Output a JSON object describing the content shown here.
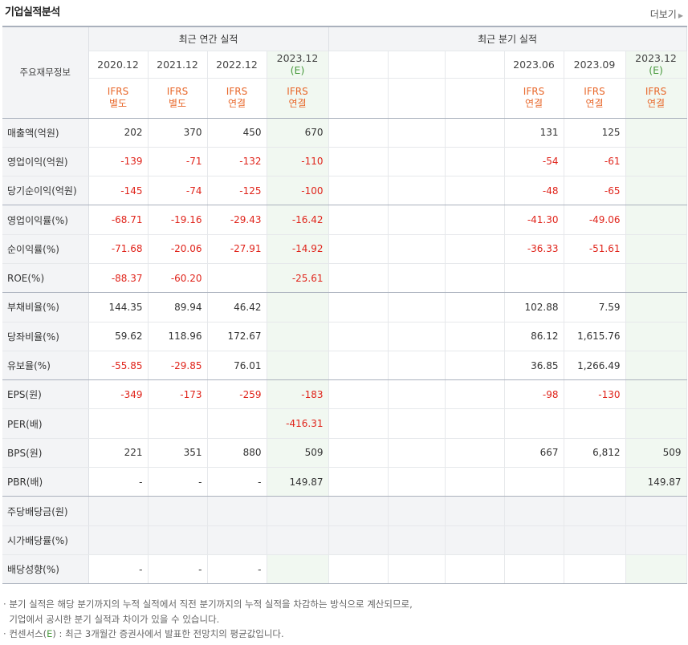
{
  "header": {
    "title": "기업실적분석",
    "more_label": "더보기"
  },
  "table": {
    "row_header_label": "주요재무정보",
    "annual_group_label": "최근 연간 실적",
    "quarter_group_label": "최근 분기 실적",
    "annual_periods": [
      {
        "label": "2020.12",
        "estimate": false,
        "ifrs": "IFRS",
        "basis": "별도"
      },
      {
        "label": "2021.12",
        "estimate": false,
        "ifrs": "IFRS",
        "basis": "별도"
      },
      {
        "label": "2022.12",
        "estimate": false,
        "ifrs": "IFRS",
        "basis": "연결"
      },
      {
        "label": "2023.12",
        "estimate": true,
        "estimate_mark": "(E)",
        "ifrs": "IFRS",
        "basis": "연결"
      }
    ],
    "quarter_periods": [
      {
        "label": "",
        "estimate": false,
        "ifrs": "",
        "basis": ""
      },
      {
        "label": "",
        "estimate": false,
        "ifrs": "",
        "basis": ""
      },
      {
        "label": "",
        "estimate": false,
        "ifrs": "",
        "basis": ""
      },
      {
        "label": "2023.06",
        "estimate": false,
        "ifrs": "IFRS",
        "basis": "연결"
      },
      {
        "label": "2023.09",
        "estimate": false,
        "ifrs": "IFRS",
        "basis": "연결"
      },
      {
        "label": "2023.12",
        "estimate": true,
        "estimate_mark": "(E)",
        "ifrs": "IFRS",
        "basis": "연결"
      }
    ],
    "rows": [
      {
        "label": "매출액(억원)",
        "values": [
          "202",
          "370",
          "450",
          "670",
          "",
          "",
          "",
          "131",
          "125",
          ""
        ]
      },
      {
        "label": "영업이익(억원)",
        "values": [
          "-139",
          "-71",
          "-132",
          "-110",
          "",
          "",
          "",
          "-54",
          "-61",
          ""
        ]
      },
      {
        "label": "당기순이익(억원)",
        "values": [
          "-145",
          "-74",
          "-125",
          "-100",
          "",
          "",
          "",
          "-48",
          "-65",
          ""
        ],
        "group_end": true
      },
      {
        "label": "영업이익률(%)",
        "values": [
          "-68.71",
          "-19.16",
          "-29.43",
          "-16.42",
          "",
          "",
          "",
          "-41.30",
          "-49.06",
          ""
        ]
      },
      {
        "label": "순이익률(%)",
        "values": [
          "-71.68",
          "-20.06",
          "-27.91",
          "-14.92",
          "",
          "",
          "",
          "-36.33",
          "-51.61",
          ""
        ]
      },
      {
        "label": "ROE(%)",
        "values": [
          "-88.37",
          "-60.20",
          "",
          "-25.61",
          "",
          "",
          "",
          "",
          "",
          ""
        ],
        "group_end": true
      },
      {
        "label": "부채비율(%)",
        "values": [
          "144.35",
          "89.94",
          "46.42",
          "",
          "",
          "",
          "",
          "102.88",
          "7.59",
          ""
        ]
      },
      {
        "label": "당좌비율(%)",
        "values": [
          "59.62",
          "118.96",
          "172.67",
          "",
          "",
          "",
          "",
          "86.12",
          "1,615.76",
          ""
        ]
      },
      {
        "label": "유보율(%)",
        "values": [
          "-55.85",
          "-29.85",
          "76.01",
          "",
          "",
          "",
          "",
          "36.85",
          "1,266.49",
          ""
        ],
        "group_end": true
      },
      {
        "label": "EPS(원)",
        "values": [
          "-349",
          "-173",
          "-259",
          "-183",
          "",
          "",
          "",
          "-98",
          "-130",
          ""
        ]
      },
      {
        "label": "PER(배)",
        "values": [
          "",
          "",
          "",
          "-416.31",
          "",
          "",
          "",
          "",
          "",
          ""
        ]
      },
      {
        "label": "BPS(원)",
        "values": [
          "221",
          "351",
          "880",
          "509",
          "",
          "",
          "",
          "667",
          "6,812",
          "509"
        ]
      },
      {
        "label": "PBR(배)",
        "values": [
          "-",
          "-",
          "-",
          "149.87",
          "",
          "",
          "",
          "",
          "",
          "149.87"
        ],
        "group_end": true
      },
      {
        "label": "주당배당금(원)",
        "values": [
          "",
          "",
          "",
          "",
          "",
          "",
          "",
          "",
          "",
          ""
        ],
        "grey": true
      },
      {
        "label": "시가배당률(%)",
        "values": [
          "",
          "",
          "",
          "",
          "",
          "",
          "",
          "",
          "",
          ""
        ],
        "grey": true
      },
      {
        "label": "배당성향(%)",
        "values": [
          "-",
          "-",
          "-",
          "",
          "",
          "",
          "",
          "",
          "",
          ""
        ],
        "last": true
      }
    ]
  },
  "notes": {
    "line1": "분기 실적은 해당 분기까지의 누적 실적에서 직전 분기까지의 누적 실적을 차감하는 방식으로 계산되므로,",
    "line2": "기업에서 공시한 분기 실적과 차이가 있을 수 있습니다.",
    "line3_prefix": "컨센서스(",
    "line3_mark": "E",
    "line3_suffix": ") : 최근 3개월간 증권사에서 발표한 전망치의 평균값입니다."
  },
  "colors": {
    "negative": "#e0241b",
    "ifrs": "#e8672a",
    "estimate_bg": "#f1f8f1",
    "estimate_mark": "#4a9a3f"
  }
}
